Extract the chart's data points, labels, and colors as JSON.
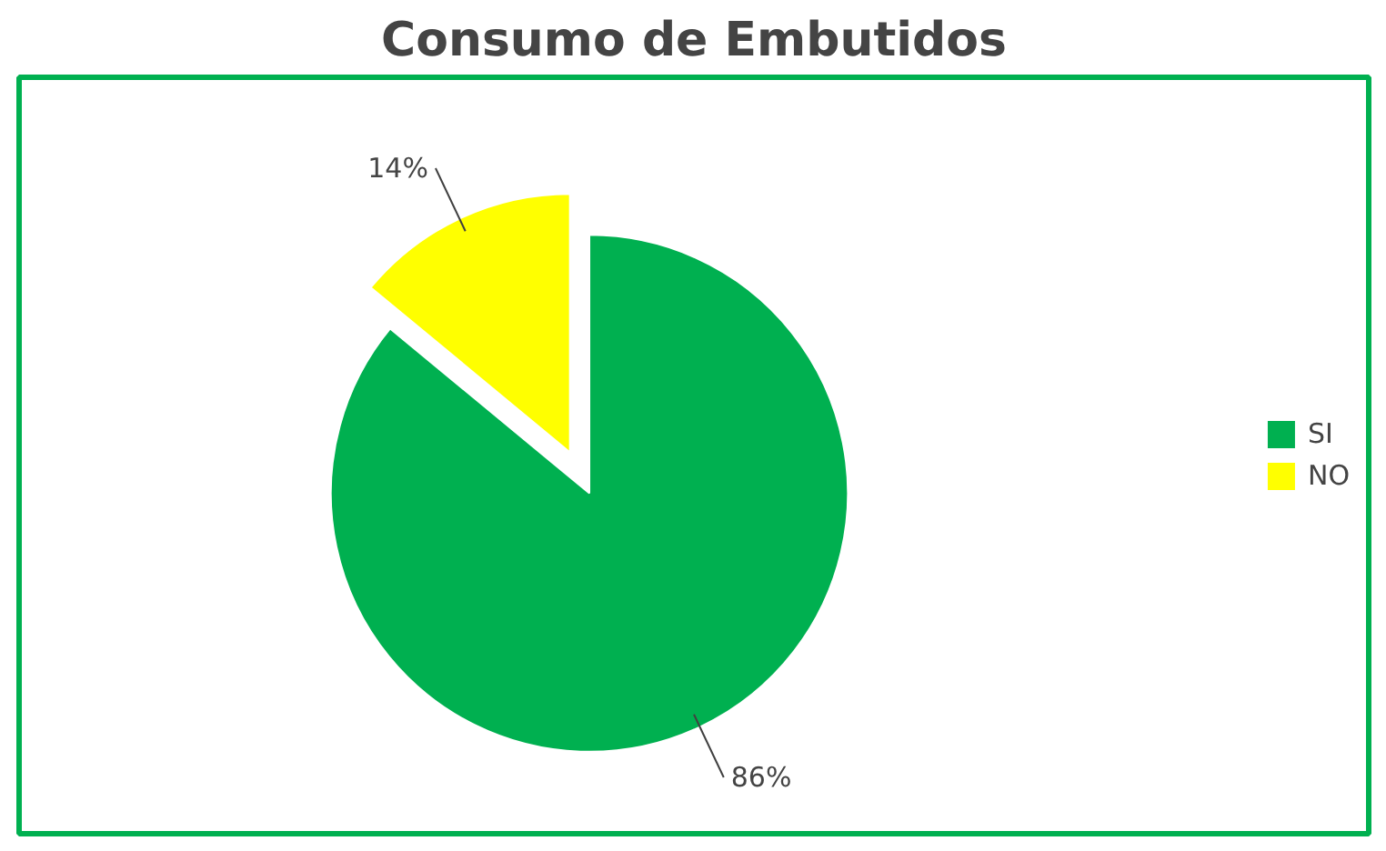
{
  "chart_data": {
    "type": "pie",
    "title": "Consumo de Embutidos",
    "categories": [
      "SI",
      "NO"
    ],
    "values": [
      86,
      14
    ],
    "colors": [
      "#00b050",
      "#ffff00"
    ],
    "value_labels": [
      "86%",
      "14%"
    ],
    "legend": "right"
  }
}
